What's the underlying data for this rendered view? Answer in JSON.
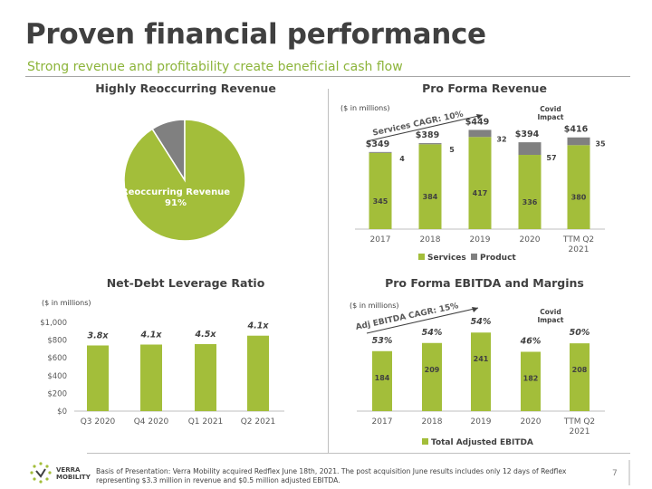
{
  "header": {
    "title": "Proven financial performance",
    "subtitle": "Strong revenue and profitability create beneficial cash flow"
  },
  "colors": {
    "green": "#a3be3a",
    "gray": "#808080",
    "accent": "#8cb43a"
  },
  "sections": {
    "reoccurring": "Highly Reoccurring Revenue",
    "revenue": "Pro Forma Revenue",
    "leverage": "Net-Debt Leverage Ratio",
    "ebitda": "Pro Forma EBITDA and Margins"
  },
  "notes": {
    "revenue_units": "($ in millions)",
    "leverage_units": "($ in millions)",
    "ebitda_units": "($ in millions)",
    "revenue_cagr": "Services CAGR: 10%",
    "ebitda_cagr": "Adj EBITDA CAGR: 15%",
    "revenue_covid": "Covid\nImpact",
    "ebitda_covid": "Covid\nImpact"
  },
  "footer": {
    "logo_line1": "VERRA",
    "logo_line2": "MOBILITY",
    "basis": "Basis of Presentation: Verra Mobility acquired Redflex June 18th, 2021. The post acquisition June results includes only 12 days of Redflex representing $3.3 million in revenue and $0.5 million adjusted EBITDA.",
    "page": "7"
  },
  "chart_data": [
    {
      "type": "pie",
      "name": "reoccurring",
      "slices": [
        {
          "label": "Reoccurring Revenue",
          "value": 91,
          "display": "91%"
        },
        {
          "label": "",
          "value": 9
        }
      ],
      "labels": [
        "Reoccurring Revenue",
        "91%"
      ]
    },
    {
      "type": "bar",
      "name": "revenue",
      "stacked": true,
      "categories": [
        "2017",
        "2018",
        "2019",
        "2020",
        "TTM Q2 2021"
      ],
      "series": [
        {
          "name": "Services",
          "values": [
            345,
            384,
            417,
            336,
            380
          ]
        },
        {
          "name": "Product",
          "values": [
            4,
            5,
            32,
            57,
            35
          ]
        }
      ],
      "totals": [
        "$349",
        "$389",
        "$449",
        "$394",
        "$416"
      ],
      "ylim": [
        0,
        500
      ],
      "legend": "bottom"
    },
    {
      "type": "bar",
      "name": "leverage",
      "categories": [
        "Q3 2020",
        "Q4 2020",
        "Q1 2021",
        "Q2 2021"
      ],
      "values": [
        740,
        750,
        755,
        850
      ],
      "labels": [
        "3.8x",
        "4.1x",
        "4.5x",
        "4.1x"
      ],
      "yticks": [
        "$0",
        "$200",
        "$400",
        "$600",
        "$800",
        "$1,000"
      ],
      "ylim": [
        0,
        1000
      ]
    },
    {
      "type": "bar",
      "name": "ebitda",
      "categories": [
        "2017",
        "2018",
        "2019",
        "2020",
        "TTM Q2 2021"
      ],
      "series": [
        {
          "name": "Total Adjusted EBITDA",
          "values": [
            184,
            209,
            241,
            182,
            208
          ]
        }
      ],
      "margins": [
        "53%",
        "54%",
        "54%",
        "46%",
        "50%"
      ],
      "ylim": [
        0,
        300
      ],
      "legend": "bottom"
    }
  ]
}
